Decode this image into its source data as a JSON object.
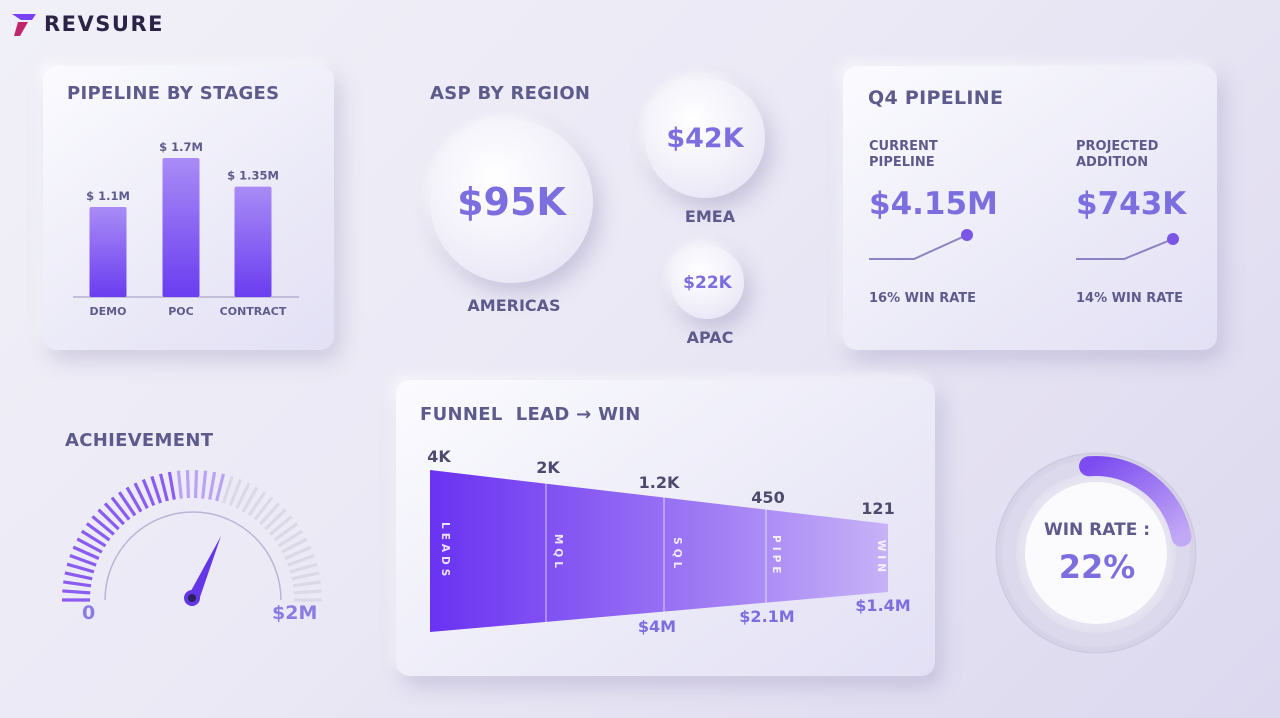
{
  "brand": {
    "name": "REVSURE"
  },
  "pipeline_by_stages": {
    "title": "PIPELINE BY STAGES",
    "bars": [
      {
        "label": "DEMO",
        "value_label": "$ 1.1M",
        "value": 1.1
      },
      {
        "label": "POC",
        "value_label": "$ 1.7M",
        "value": 1.7
      },
      {
        "label": "CONTRACT",
        "value_label": "$ 1.35M",
        "value": 1.35
      }
    ],
    "max": 1.7
  },
  "asp_by_region": {
    "title": "ASP BY REGION",
    "americas": {
      "value": "$95K",
      "label": "AMERICAS"
    },
    "emea": {
      "value": "$42K",
      "label": "EMEA"
    },
    "apac": {
      "value": "$22K",
      "label": "APAC"
    }
  },
  "q4_pipeline": {
    "title": "Q4 PIPELINE",
    "current": {
      "label_line1": "CURRENT",
      "label_line2": "PIPELINE",
      "value": "$4.15M",
      "win_rate": "16% WIN RATE"
    },
    "projected": {
      "label_line1": "PROJECTED",
      "label_line2": "ADDITION",
      "value": "$743K",
      "win_rate": "14% WIN RATE"
    }
  },
  "achievement": {
    "title": "ACHIEVEMENT",
    "min_label": "0",
    "max_label": "$2M"
  },
  "funnel": {
    "title": "FUNNEL  LEAD → WIN",
    "stages": [
      {
        "name": "LEADS",
        "count": "4K"
      },
      {
        "name": "MQL",
        "count": "2K"
      },
      {
        "name": "SQL",
        "count": "1.2K"
      },
      {
        "name": "PIPE",
        "count": "450"
      },
      {
        "name": "WIN",
        "count": "121"
      }
    ],
    "bottom_labels": [
      "$4M",
      "$2.1M",
      "$1.4M"
    ]
  },
  "win_rate": {
    "label": "WIN RATE :",
    "value": "22%",
    "fraction": 0.22
  },
  "colors": {
    "accent": "#7b3ff5",
    "accent_light": "#b79af5",
    "text": "#5e5b8c",
    "brand_dark": "#2a2346"
  }
}
